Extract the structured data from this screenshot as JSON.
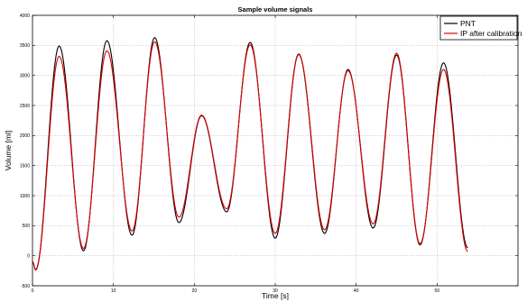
{
  "chart_data": {
    "type": "line",
    "title": "Sample volume signals",
    "xlabel": "Time [s]",
    "ylabel": "Volume [ml]",
    "xlim": [
      0,
      60
    ],
    "ylim": [
      -500,
      4000
    ],
    "xticks": [
      0,
      10,
      20,
      30,
      40,
      50
    ],
    "yticks": [
      -500,
      0,
      500,
      1000,
      1500,
      2000,
      2500,
      3000,
      3500,
      4000
    ],
    "grid": true,
    "legend_position": "top-right",
    "series": [
      {
        "name": "PNT",
        "color": "#000000",
        "points": [
          [
            0,
            -100
          ],
          [
            0.4,
            -230
          ],
          [
            3.3,
            3490
          ],
          [
            6.3,
            80
          ],
          [
            9.2,
            3580
          ],
          [
            12.3,
            340
          ],
          [
            15.1,
            3630
          ],
          [
            18.1,
            550
          ],
          [
            20.9,
            2330
          ],
          [
            24.0,
            730
          ],
          [
            26.9,
            3550
          ],
          [
            30.0,
            290
          ],
          [
            32.9,
            3350
          ],
          [
            36.1,
            370
          ],
          [
            39.0,
            3100
          ],
          [
            42.1,
            460
          ],
          [
            45.0,
            3340
          ],
          [
            47.9,
            180
          ],
          [
            50.8,
            3210
          ],
          [
            53.8,
            130
          ]
        ]
      },
      {
        "name": "IP after calibration",
        "color": "#dd0000",
        "points": [
          [
            0,
            -100
          ],
          [
            0.4,
            -240
          ],
          [
            3.3,
            3320
          ],
          [
            6.3,
            120
          ],
          [
            9.2,
            3410
          ],
          [
            12.3,
            410
          ],
          [
            15.1,
            3560
          ],
          [
            18.1,
            640
          ],
          [
            20.9,
            2340
          ],
          [
            24.0,
            780
          ],
          [
            26.9,
            3510
          ],
          [
            30.0,
            370
          ],
          [
            32.9,
            3360
          ],
          [
            36.1,
            430
          ],
          [
            39.0,
            3080
          ],
          [
            42.1,
            530
          ],
          [
            45.0,
            3370
          ],
          [
            47.9,
            200
          ],
          [
            50.8,
            3100
          ],
          [
            53.8,
            70
          ]
        ]
      }
    ]
  }
}
